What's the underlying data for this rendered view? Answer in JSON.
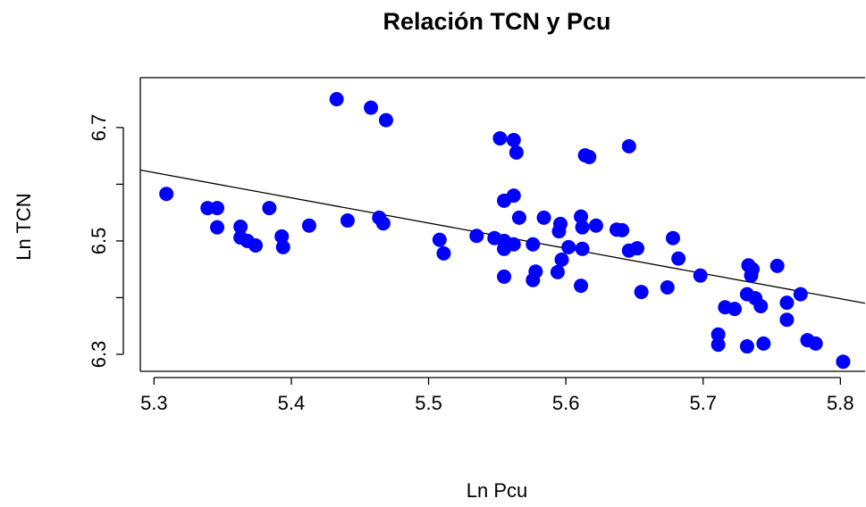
{
  "chart_data": {
    "type": "scatter",
    "title": "Relación TCN y Pcu",
    "x_label": "Ln Pcu",
    "y_label": "Ln TCN",
    "color": "#0000ff",
    "xlim": [
      5.29,
      5.818
    ],
    "ylim": [
      6.27,
      6.788
    ],
    "xticks": [
      5.3,
      5.4,
      5.5,
      5.6,
      5.7,
      5.8
    ],
    "yticks": [
      6.3,
      {
        "value": 6.4,
        "label": null
      },
      6.5,
      {
        "value": 6.6,
        "label": null
      },
      6.7
    ],
    "x": [
      5.309,
      5.339,
      5.346,
      5.346,
      5.363,
      5.363,
      5.368,
      5.374,
      5.384,
      5.393,
      5.394,
      5.413,
      5.441,
      5.433,
      5.458,
      5.469,
      5.464,
      5.467,
      5.508,
      5.511,
      5.535,
      5.548,
      5.552,
      5.562,
      5.555,
      5.562,
      5.555,
      5.555,
      5.562,
      5.555,
      5.564,
      5.566,
      5.576,
      5.578,
      5.576,
      5.584,
      5.596,
      5.595,
      5.597,
      5.594,
      5.602,
      5.611,
      5.612,
      5.612,
      5.611,
      5.614,
      5.617,
      5.622,
      5.637,
      5.641,
      5.646,
      5.652,
      5.655,
      5.646,
      5.674,
      5.678,
      5.682,
      5.698,
      5.711,
      5.711,
      5.716,
      5.723,
      5.732,
      5.733,
      5.736,
      5.735,
      5.738,
      5.732,
      5.742,
      5.744,
      5.754,
      5.761,
      5.761,
      5.771,
      5.776,
      5.782,
      5.802
    ],
    "values": [
      6.583,
      6.558,
      6.558,
      6.524,
      6.525,
      6.506,
      6.5,
      6.492,
      6.558,
      6.508,
      6.489,
      6.527,
      6.536,
      6.75,
      6.735,
      6.713,
      6.541,
      6.531,
      6.502,
      6.478,
      6.509,
      6.505,
      6.681,
      6.678,
      6.571,
      6.58,
      6.5,
      6.486,
      6.494,
      6.437,
      6.656,
      6.541,
      6.494,
      6.446,
      6.431,
      6.541,
      6.53,
      6.517,
      6.467,
      6.445,
      6.489,
      6.543,
      6.524,
      6.486,
      6.421,
      6.651,
      6.648,
      6.527,
      6.52,
      6.519,
      6.483,
      6.487,
      6.41,
      6.667,
      6.418,
      6.505,
      6.469,
      6.439,
      6.335,
      6.317,
      6.383,
      6.38,
      6.406,
      6.457,
      6.45,
      6.439,
      6.399,
      6.314,
      6.385,
      6.319,
      6.456,
      6.391,
      6.361,
      6.406,
      6.325,
      6.319,
      6.287
    ],
    "trend_line": {
      "x": [
        5.29,
        5.818
      ],
      "y": [
        6.625,
        6.39
      ]
    }
  }
}
